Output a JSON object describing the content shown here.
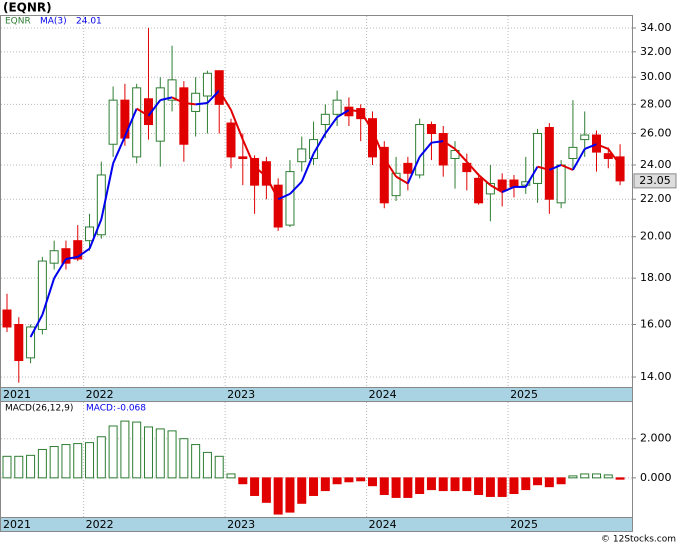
{
  "chart_data": [
    {
      "type": "candlestick",
      "title": "(EQNR)",
      "name": "EQNR",
      "scale": "log",
      "grid": true,
      "up_color": "#2e7d32",
      "down_color": "#e00000",
      "categories": [
        "2021",
        null,
        null,
        null,
        null,
        null,
        null,
        "2022",
        null,
        null,
        null,
        null,
        null,
        null,
        null,
        null,
        null,
        null,
        null,
        "2023",
        null,
        null,
        null,
        null,
        null,
        null,
        null,
        null,
        null,
        null,
        null,
        "2024",
        null,
        null,
        null,
        null,
        null,
        null,
        null,
        null,
        null,
        null,
        null,
        "2025",
        null,
        null,
        null,
        null,
        null,
        null,
        null,
        null,
        null
      ],
      "open": [
        16.6,
        16.0,
        14.7,
        15.8,
        18.7,
        19.4,
        19.8,
        19.8,
        20.1,
        25.3,
        28.3,
        24.5,
        28.4,
        25.5,
        28.3,
        29.2,
        27.5,
        28.6,
        30.5,
        26.7,
        24.5,
        24.4,
        24.2,
        22.8,
        20.6,
        24.2,
        24.4,
        26.6,
        27.3,
        27.8,
        27.7,
        27.0,
        25.1,
        22.2,
        24.1,
        23.4,
        26.6,
        26.0,
        24.4,
        24.1,
        23.2,
        22.3,
        23.1,
        23.1,
        22.8,
        22.9,
        26.4,
        21.8,
        24.4,
        25.6,
        25.9,
        24.7,
        24.5
      ],
      "high": [
        17.3,
        16.3,
        16.0,
        19.0,
        19.8,
        19.8,
        20.6,
        21.2,
        24.2,
        29.3,
        29.5,
        29.5,
        34.0,
        30.0,
        32.5,
        29.7,
        30.0,
        30.5,
        30.5,
        27.0,
        26.0,
        24.6,
        24.5,
        23.2,
        24.3,
        25.8,
        26.8,
        28.0,
        29.0,
        28.5,
        28.0,
        27.5,
        25.5,
        24.5,
        24.5,
        27.0,
        26.8,
        26.5,
        25.5,
        24.7,
        23.5,
        24.0,
        23.5,
        23.4,
        24.5,
        26.3,
        26.7,
        24.3,
        28.3,
        27.5,
        26.2,
        25.1,
        25.3
      ],
      "low": [
        15.7,
        13.8,
        14.5,
        15.6,
        18.4,
        18.4,
        18.8,
        19.3,
        19.9,
        24.5,
        25.2,
        24.1,
        25.6,
        23.9,
        27.5,
        24.2,
        25.8,
        26.0,
        26.0,
        23.8,
        22.8,
        21.2,
        22.0,
        20.3,
        20.5,
        23.6,
        24.0,
        25.7,
        26.5,
        26.5,
        25.5,
        24.0,
        21.5,
        21.9,
        22.5,
        23.2,
        24.3,
        23.3,
        22.6,
        22.5,
        21.7,
        20.8,
        21.6,
        22.1,
        22.3,
        21.8,
        21.2,
        21.5,
        23.7,
        24.5,
        23.6,
        23.8,
        22.8
      ],
      "close": [
        15.9,
        14.6,
        15.9,
        18.8,
        19.3,
        18.7,
        18.9,
        20.5,
        23.4,
        28.3,
        25.7,
        29.2,
        26.6,
        29.2,
        29.8,
        25.3,
        28.8,
        30.3,
        28.0,
        24.5,
        24.4,
        22.8,
        22.8,
        20.5,
        23.6,
        25.0,
        25.6,
        27.3,
        28.3,
        27.2,
        27.0,
        24.5,
        21.8,
        23.5,
        23.5,
        26.6,
        26.0,
        24.0,
        24.9,
        23.6,
        21.8,
        22.9,
        22.5,
        22.7,
        23.0,
        26.0,
        22.0,
        24.0,
        25.1,
        25.9,
        24.8,
        24.4,
        23.05
      ],
      "ma": {
        "name": "MA(3)",
        "current": 24.01,
        "up_color": "#0000ee",
        "down_color": "#e00000",
        "values": [
          null,
          null,
          15.5,
          16.4,
          18.0,
          18.9,
          19.0,
          19.4,
          20.9,
          24.1,
          25.8,
          27.7,
          27.2,
          28.3,
          28.5,
          28.1,
          28.0,
          28.1,
          29.0,
          27.6,
          25.6,
          23.9,
          23.3,
          22.0,
          22.3,
          23.0,
          24.7,
          26.0,
          27.1,
          27.6,
          27.5,
          26.2,
          24.4,
          23.3,
          22.9,
          24.5,
          25.4,
          25.5,
          25.0,
          24.2,
          23.4,
          22.8,
          22.4,
          22.7,
          22.7,
          23.9,
          23.7,
          24.0,
          23.7,
          25.0,
          25.3,
          25.0,
          24.01
        ]
      },
      "ylim": [
        13.65,
        35.05
      ],
      "yticks": [
        {
          "value": 14,
          "label": "14.00"
        },
        {
          "value": 16,
          "label": "16.00"
        },
        {
          "value": 18,
          "label": "18.00"
        },
        {
          "value": 20,
          "label": "20.00"
        },
        {
          "value": 22,
          "label": "22.00"
        },
        {
          "value": 24,
          "label": "24.00"
        },
        {
          "value": 26,
          "label": "26.00"
        },
        {
          "value": 28,
          "label": "28.00"
        },
        {
          "value": 30,
          "label": "30.00"
        },
        {
          "value": 32,
          "label": "32.00"
        },
        {
          "value": 34,
          "label": "34.00"
        }
      ]
    },
    {
      "type": "bar",
      "title": "MACD(26,12,9)",
      "name": "MACD:",
      "grid": true,
      "up_color": "#2e7d32",
      "down_color": "#e00000",
      "categories": [
        "2021",
        null,
        null,
        null,
        null,
        null,
        null,
        "2022",
        null,
        null,
        null,
        null,
        null,
        null,
        null,
        null,
        null,
        null,
        null,
        "2023",
        null,
        null,
        null,
        null,
        null,
        null,
        null,
        null,
        null,
        null,
        null,
        "2024",
        null,
        null,
        null,
        null,
        null,
        null,
        null,
        null,
        null,
        null,
        null,
        "2025",
        null,
        null,
        null,
        null,
        null,
        null,
        null,
        null,
        null
      ],
      "values": [
        1.1,
        1.1,
        1.15,
        1.45,
        1.6,
        1.7,
        1.75,
        1.8,
        2.1,
        2.65,
        2.9,
        2.85,
        2.6,
        2.5,
        2.4,
        2.0,
        1.7,
        1.3,
        1.1,
        0.2,
        -0.3,
        -0.9,
        -1.25,
        -1.85,
        -1.75,
        -1.3,
        -0.9,
        -0.65,
        -0.3,
        -0.2,
        -0.15,
        -0.4,
        -0.85,
        -1.0,
        -1.0,
        -0.8,
        -0.6,
        -0.65,
        -0.65,
        -0.65,
        -0.85,
        -0.95,
        -0.95,
        -0.8,
        -0.6,
        -0.35,
        -0.45,
        -0.3,
        0.1,
        0.2,
        0.2,
        0.15,
        -0.068
      ],
      "ylim": [
        -2.0,
        3.875
      ],
      "yticks": [
        {
          "value": 0,
          "label": "0.000"
        },
        {
          "value": 2,
          "label": "2.000"
        }
      ]
    }
  ],
  "footer": "© 12Stocks.com"
}
